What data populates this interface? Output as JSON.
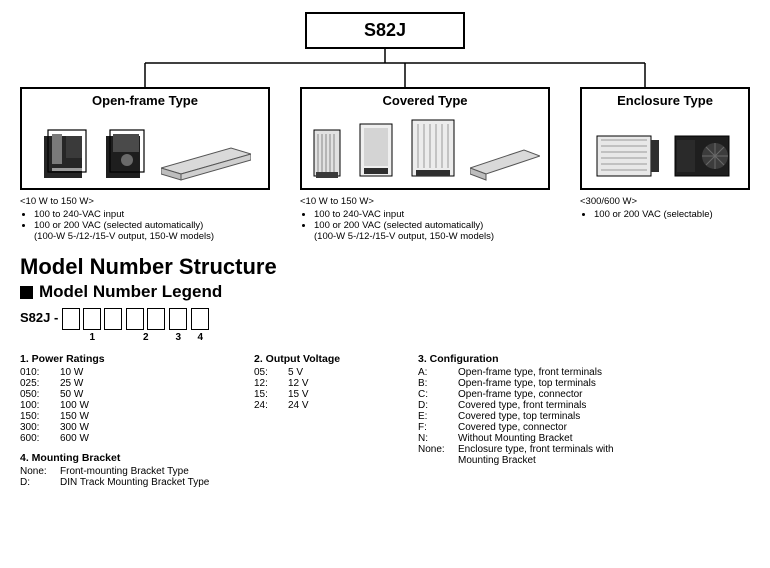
{
  "root_title": "S82J",
  "type_boxes": {
    "open": {
      "title": "Open-frame Type"
    },
    "cov": {
      "title": "Covered Type"
    },
    "enc": {
      "title": "Enclosure Type"
    }
  },
  "specs": {
    "open": {
      "head": "<10 W to 150 W>",
      "bullets": [
        "100 to 240-VAC input",
        "100 or 200 VAC (selected automatically)"
      ],
      "sub": "(100-W 5-/12-/15-V output, 150-W models)"
    },
    "cov": {
      "head": "<10 W to 150 W>",
      "bullets": [
        "100 to 240-VAC input",
        "100 or 200 VAC (selected automatically)"
      ],
      "sub": "(100-W 5-/12-/15-V output, 150-W models)"
    },
    "enc": {
      "head": "<300/600 W>",
      "bullets": [
        "100 or 200 VAC (selectable)"
      ],
      "sub": ""
    }
  },
  "section_title": "Model Number Structure",
  "legend_head": "Model Number Legend",
  "model_prefix": "S82J -",
  "digit_indices": [
    "1",
    "2",
    "3",
    "4"
  ],
  "power_ratings_title": "1. Power Ratings",
  "power_ratings": [
    {
      "k": "010:",
      "v": "10 W"
    },
    {
      "k": "025:",
      "v": "25 W"
    },
    {
      "k": "050:",
      "v": "50 W"
    },
    {
      "k": "100:",
      "v": "100 W"
    },
    {
      "k": "150:",
      "v": "150 W"
    },
    {
      "k": "300:",
      "v": "300 W"
    },
    {
      "k": "600:",
      "v": "600 W"
    }
  ],
  "output_voltage_title": "2. Output Voltage",
  "output_voltage": [
    {
      "k": "05:",
      "v": "5 V"
    },
    {
      "k": "12:",
      "v": "12 V"
    },
    {
      "k": "15:",
      "v": "15 V"
    },
    {
      "k": "24:",
      "v": "24 V"
    }
  ],
  "configuration_title": "3. Configuration",
  "configuration": [
    {
      "k": "A:",
      "v": "Open-frame type, front terminals"
    },
    {
      "k": "B:",
      "v": "Open-frame type, top terminals"
    },
    {
      "k": "C:",
      "v": "Open-frame type, connector"
    },
    {
      "k": "D:",
      "v": "Covered type, front terminals"
    },
    {
      "k": "E:",
      "v": "Covered type, top terminals"
    },
    {
      "k": "F:",
      "v": "Covered type, connector"
    },
    {
      "k": "N:",
      "v": "Without Mounting Bracket"
    },
    {
      "k": "None:",
      "v": "Enclosure type, front terminals with"
    }
  ],
  "configuration_cont": "Mounting Bracket",
  "mounting_bracket_title": "4. Mounting Bracket",
  "mounting_bracket": [
    {
      "k": "None:",
      "v": "Front-mounting Bracket Type"
    },
    {
      "k": "D:",
      "v": "DIN Track Mounting Bracket Type"
    }
  ],
  "colors": {
    "line": "#000000",
    "psu_dark": "#262626",
    "psu_mid": "#6b6b6b",
    "psu_light": "#c8c8c8",
    "rail": "#d9d9d9"
  }
}
